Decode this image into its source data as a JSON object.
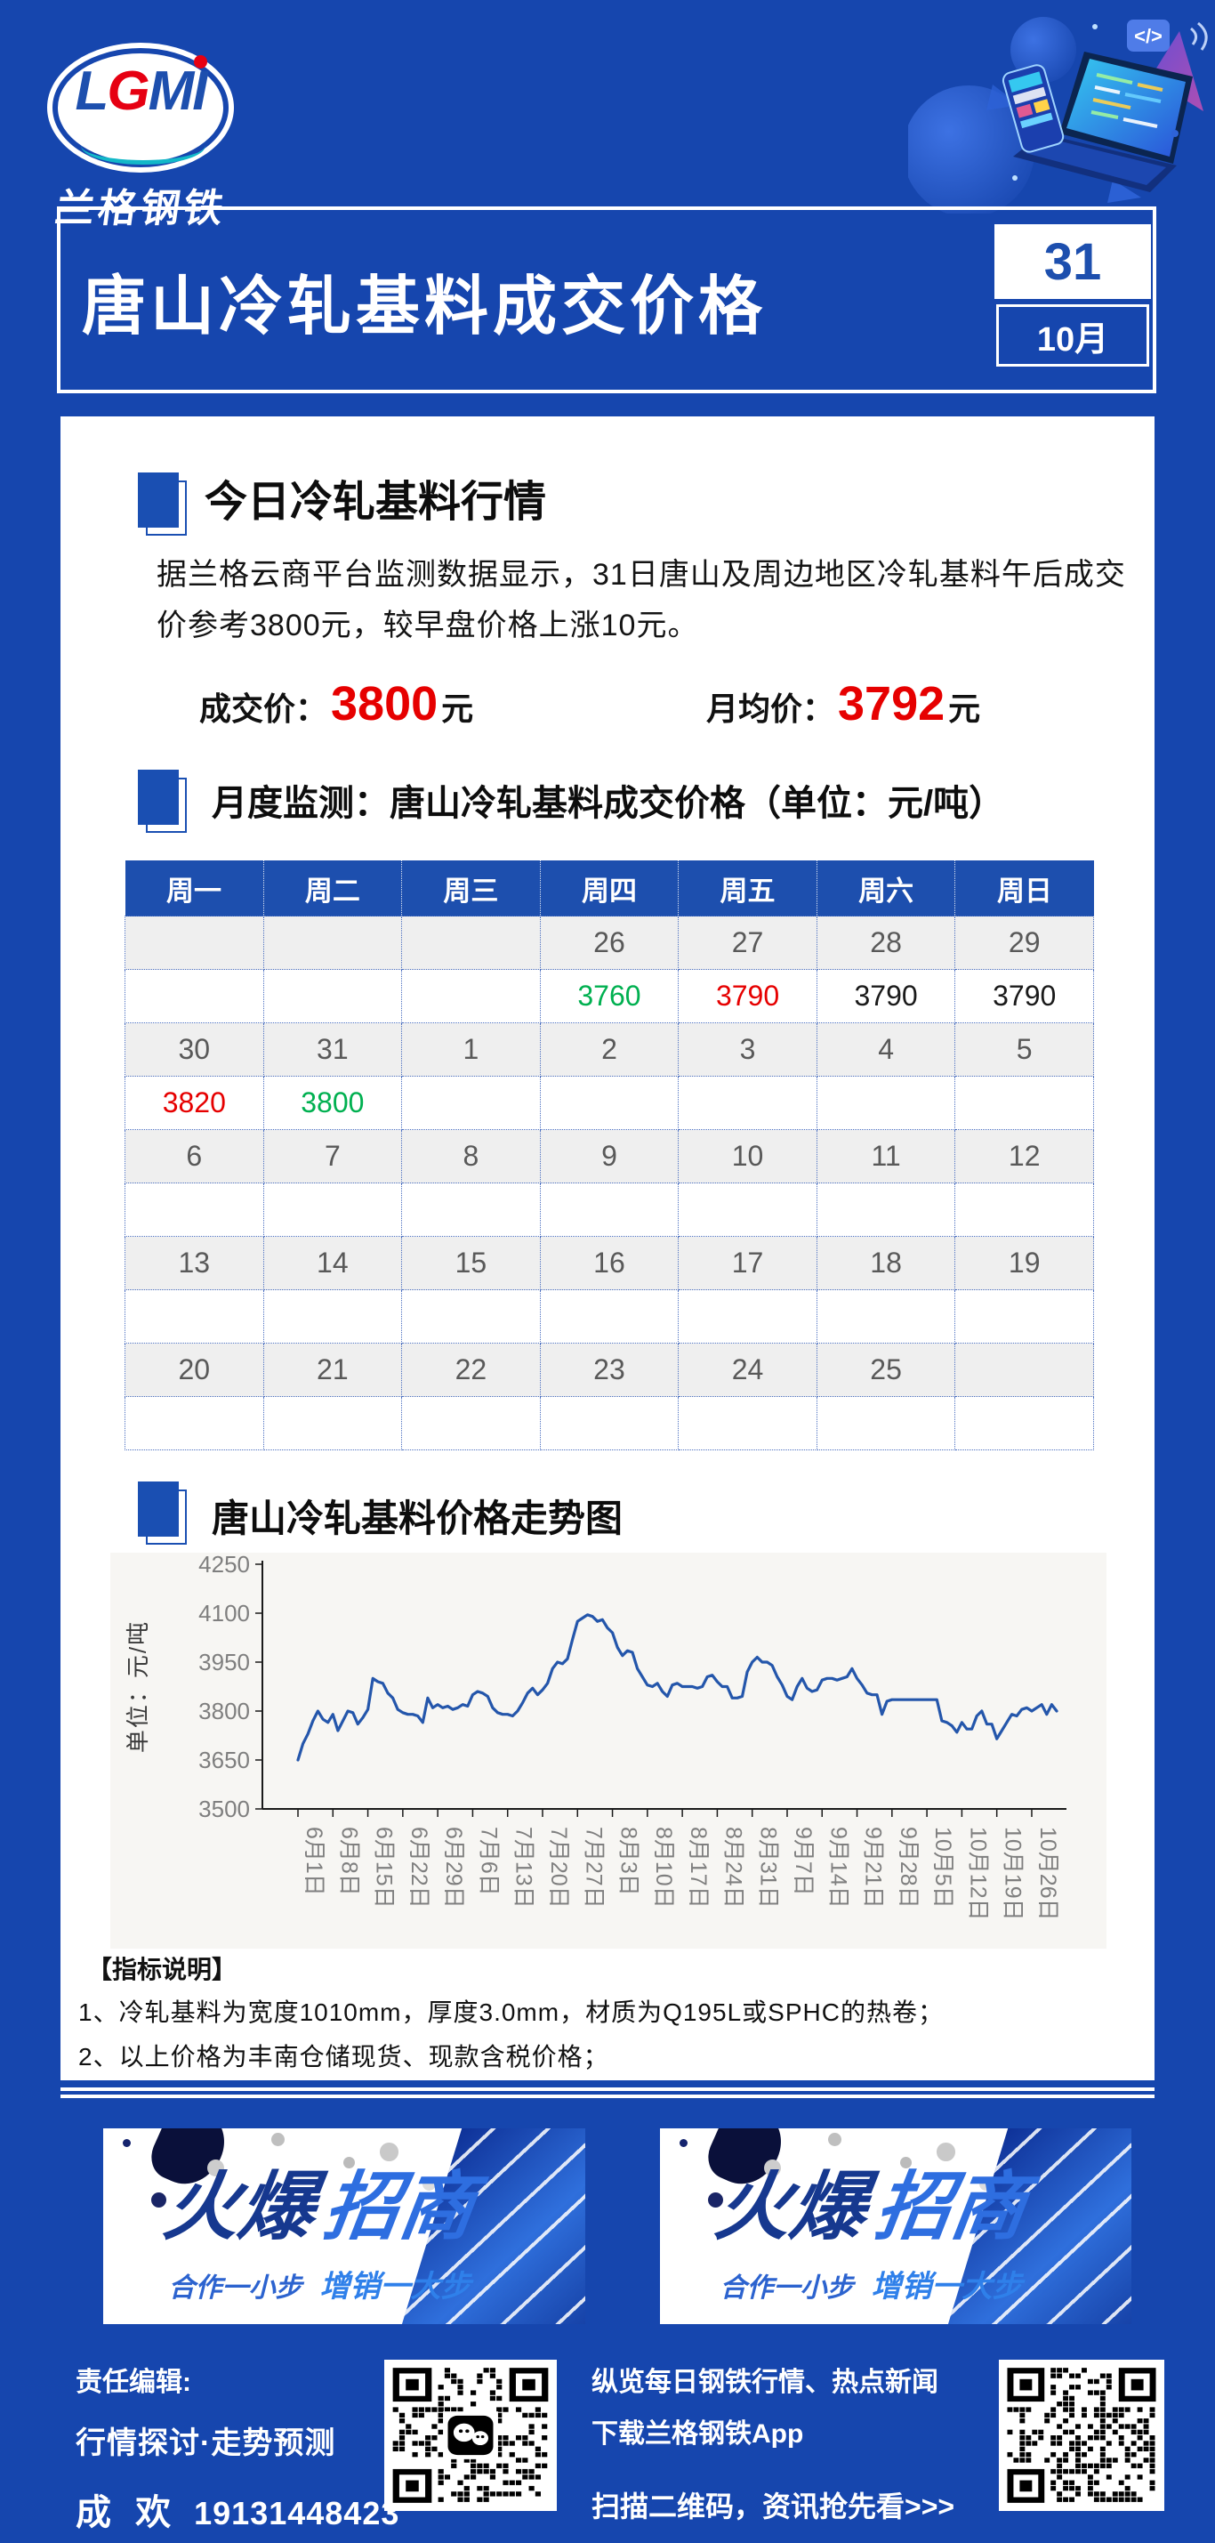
{
  "colors": {
    "page_bg": "#1646ae",
    "accent": "#1d4fae",
    "up": "#e60000",
    "down": "#00b050",
    "flat": "#1a1a1a",
    "chart_line": "#2456ab"
  },
  "header": {
    "logo_letters": [
      "L",
      "G",
      "M",
      "I"
    ],
    "logo_subtitle": "兰格钢铁"
  },
  "title_bar": {
    "title": "唐山冷轧基料成交价格",
    "day": "31",
    "month": "10月"
  },
  "today": {
    "section_title": "今日冷轧基料行情",
    "paragraph": "据兰格云商平台监测数据显示，31日唐山及周边地区冷轧基料午后成交价参考3800元，较早盘价格上涨10元。",
    "deal_label": "成交价：",
    "deal_value": "3800",
    "deal_unit": "元",
    "avg_label": "月均价：",
    "avg_value": "3792",
    "avg_unit": "元"
  },
  "monthly": {
    "section_title": "月度监测：唐山冷轧基料成交价格（单位：元/吨）",
    "weekdays": [
      "周一",
      "周二",
      "周三",
      "周四",
      "周五",
      "周六",
      "周日"
    ],
    "rows": [
      {
        "kind": "dates",
        "cells": [
          "",
          "",
          "",
          "26",
          "27",
          "28",
          "29"
        ]
      },
      {
        "kind": "prices",
        "cells": [
          {
            "v": ""
          },
          {
            "v": ""
          },
          {
            "v": ""
          },
          {
            "v": "3760",
            "c": "down"
          },
          {
            "v": "3790",
            "c": "up"
          },
          {
            "v": "3790",
            "c": "flat"
          },
          {
            "v": "3790",
            "c": "flat"
          }
        ]
      },
      {
        "kind": "dates",
        "cells": [
          "30",
          "31",
          "1",
          "2",
          "3",
          "4",
          "5"
        ]
      },
      {
        "kind": "prices",
        "cells": [
          {
            "v": "3820",
            "c": "up"
          },
          {
            "v": "3800",
            "c": "down"
          },
          {
            "v": ""
          },
          {
            "v": ""
          },
          {
            "v": ""
          },
          {
            "v": ""
          },
          {
            "v": ""
          }
        ]
      },
      {
        "kind": "dates",
        "cells": [
          "6",
          "7",
          "8",
          "9",
          "10",
          "11",
          "12"
        ]
      },
      {
        "kind": "prices",
        "cells": [
          {
            "v": ""
          },
          {
            "v": ""
          },
          {
            "v": ""
          },
          {
            "v": ""
          },
          {
            "v": ""
          },
          {
            "v": ""
          },
          {
            "v": ""
          }
        ]
      },
      {
        "kind": "dates",
        "cells": [
          "13",
          "14",
          "15",
          "16",
          "17",
          "18",
          "19"
        ]
      },
      {
        "kind": "prices",
        "cells": [
          {
            "v": ""
          },
          {
            "v": ""
          },
          {
            "v": ""
          },
          {
            "v": ""
          },
          {
            "v": ""
          },
          {
            "v": ""
          },
          {
            "v": ""
          }
        ]
      },
      {
        "kind": "dates",
        "cells": [
          "20",
          "21",
          "22",
          "23",
          "24",
          "25",
          ""
        ]
      },
      {
        "kind": "prices",
        "cells": [
          {
            "v": ""
          },
          {
            "v": ""
          },
          {
            "v": ""
          },
          {
            "v": ""
          },
          {
            "v": ""
          },
          {
            "v": ""
          },
          {
            "v": ""
          }
        ]
      }
    ]
  },
  "trend": {
    "section_title": "唐山冷轧基料价格走势图"
  },
  "chart_data": {
    "type": "line",
    "title": "唐山冷轧基料价格走势图",
    "ylabel": "单位：元/吨",
    "ylim": [
      3500,
      4250
    ],
    "y_ticks": [
      3500,
      3650,
      3800,
      3950,
      4100,
      4250
    ],
    "x_start": "6月1日",
    "x_end": "10月31日",
    "frequency": "daily",
    "x_tick_labels": [
      "6月1日",
      "6月8日",
      "6月15日",
      "6月22日",
      "6月29日",
      "7月6日",
      "7月13日",
      "7月20日",
      "7月27日",
      "8月3日",
      "8月10日",
      "8月17日",
      "8月24日",
      "8月31日",
      "9月7日",
      "9月14日",
      "9月21日",
      "9月28日",
      "10月5日",
      "10月12日",
      "10月19日",
      "10月26日"
    ],
    "x_tick_interval_days": 7,
    "grid": false,
    "legend": false,
    "series": [
      {
        "name": "唐山冷轧基料成交价格（元/吨）",
        "color": "#2456ab",
        "values": [
          3650,
          3700,
          3730,
          3770,
          3800,
          3775,
          3765,
          3790,
          3740,
          3770,
          3800,
          3795,
          3760,
          3780,
          3805,
          3900,
          3890,
          3885,
          3855,
          3840,
          3805,
          3795,
          3790,
          3790,
          3785,
          3765,
          3840,
          3810,
          3820,
          3810,
          3815,
          3805,
          3810,
          3820,
          3815,
          3850,
          3860,
          3855,
          3845,
          3810,
          3795,
          3790,
          3790,
          3785,
          3800,
          3825,
          3855,
          3870,
          3850,
          3865,
          3885,
          3930,
          3950,
          3945,
          3960,
          4020,
          4075,
          4085,
          4095,
          4090,
          4075,
          4080,
          4055,
          4040,
          3995,
          3970,
          3985,
          3980,
          3930,
          3905,
          3880,
          3875,
          3885,
          3860,
          3845,
          3880,
          3885,
          3875,
          3875,
          3875,
          3870,
          3875,
          3905,
          3910,
          3890,
          3875,
          3875,
          3840,
          3840,
          3845,
          3920,
          3950,
          3965,
          3950,
          3950,
          3940,
          3905,
          3880,
          3845,
          3835,
          3875,
          3900,
          3870,
          3860,
          3865,
          3895,
          3900,
          3900,
          3895,
          3900,
          3905,
          3930,
          3900,
          3880,
          3855,
          3850,
          3850,
          3790,
          3830,
          3835,
          3835,
          3835,
          3835,
          3835,
          3835,
          3835,
          3835,
          3835,
          3835,
          3770,
          3765,
          3755,
          3735,
          3765,
          3745,
          3745,
          3785,
          3800,
          3760,
          3760,
          3715,
          3740,
          3765,
          3790,
          3785,
          3805,
          3810,
          3800,
          3810,
          3820,
          3790,
          3820,
          3800
        ]
      }
    ]
  },
  "notes": {
    "title": "【指标说明】",
    "item1": "1、冷轧基料为宽度1010mm，厚度3.0mm，材质为Q195L或SPHC的热卷；",
    "item2": "2、以上价格为丰南仓储现货、现款含税价格；"
  },
  "banner": {
    "title_part1": "火爆",
    "title_part2": "招商",
    "subtitle_left": "合作一小步",
    "subtitle_right": "增销一大步"
  },
  "footer": {
    "editor_label": "责任编辑:",
    "editor_topic": "行情探讨·走势预测",
    "editor_name": "成 欢",
    "editor_phone": "19131448423",
    "promo_line1": "纵览每日钢铁行情、热点新闻",
    "promo_line2": "下载兰格钢铁App",
    "promo_line3": "扫描二维码，资讯抢先看>>>"
  }
}
